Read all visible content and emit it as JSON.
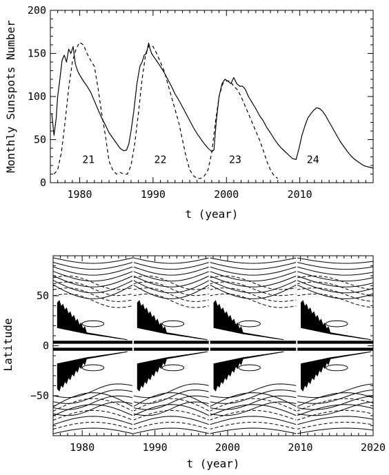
{
  "chart_data": [
    {
      "type": "line",
      "xlabel": "t (year)",
      "ylabel": "Monthly Sunspots Number",
      "xlim": [
        1976,
        2020
      ],
      "ylim": [
        0,
        200
      ],
      "xticks": [
        1980,
        1990,
        2000,
        2010
      ],
      "yticks": [
        0,
        50,
        100,
        150,
        200
      ],
      "grid": false,
      "annotations": [
        {
          "text": "21",
          "x": 1981.2,
          "y": 27
        },
        {
          "text": "22",
          "x": 1991.0,
          "y": 27
        },
        {
          "text": "23",
          "x": 2001.2,
          "y": 27
        },
        {
          "text": "24",
          "x": 2011.8,
          "y": 27
        }
      ],
      "series": [
        {
          "style": "solid",
          "x": [
            1976.2,
            1976.5,
            1976.8,
            1977.0,
            1977.3,
            1977.6,
            1977.9,
            1978.2,
            1978.5,
            1978.8,
            1979.1,
            1979.4,
            1979.7,
            1980.0,
            1980.5,
            1981.0,
            1981.5,
            1982.0,
            1982.5,
            1983.0,
            1983.5,
            1984.0,
            1984.5,
            1985.0,
            1985.5,
            1986.0,
            1986.4,
            1986.7,
            1987.0,
            1987.4,
            1987.8,
            1988.2,
            1988.5,
            1988.8,
            1989.1,
            1989.4,
            1989.6,
            1989.8,
            1990.2,
            1990.6,
            1991.0,
            1991.5,
            1992.0,
            1992.5,
            1993.0,
            1993.5,
            1994.0,
            1994.5,
            1995.0,
            1995.5,
            1996.0,
            1996.5,
            1997.0,
            1997.5,
            1998.0,
            1998.3,
            1998.6,
            1999.0,
            1999.4,
            1999.8,
            2000.2,
            2000.6,
            2001.0,
            2001.4,
            2001.8,
            2002.2,
            2002.6,
            2003.0,
            2003.5,
            2004.0,
            2004.5,
            2005.0,
            2005.5,
            2006.0,
            2006.5,
            2007.0,
            2007.5,
            2008.0,
            2008.5,
            2009.0,
            2009.5,
            2009.9,
            2010.3,
            2010.7,
            2011.1,
            2011.5,
            2011.9,
            2012.3,
            2012.7,
            2013.1,
            2013.5,
            2013.9,
            2014.3,
            2014.7,
            2015.1,
            2015.5,
            2016.0,
            2016.5,
            2017.0,
            2017.5,
            2018.0,
            2018.5,
            2019.0,
            2019.5,
            2020.0
          ],
          "y": [
            80,
            55,
            75,
            100,
            120,
            142,
            148,
            140,
            155,
            150,
            158,
            138,
            130,
            125,
            118,
            112,
            105,
            95,
            85,
            75,
            67,
            58,
            52,
            46,
            40,
            37,
            38,
            45,
            60,
            85,
            115,
            135,
            140,
            148,
            150,
            162,
            155,
            150,
            145,
            140,
            135,
            128,
            120,
            112,
            103,
            96,
            88,
            80,
            72,
            64,
            57,
            51,
            45,
            40,
            36,
            38,
            70,
            100,
            115,
            120,
            118,
            115,
            122,
            115,
            112,
            112,
            108,
            100,
            93,
            86,
            78,
            72,
            64,
            58,
            51,
            45,
            40,
            36,
            32,
            28,
            27,
            40,
            55,
            66,
            75,
            80,
            84,
            87,
            86,
            83,
            78,
            72,
            66,
            60,
            54,
            48,
            42,
            36,
            31,
            27,
            24,
            21,
            19,
            18,
            17
          ]
        },
        {
          "style": "dashed",
          "x": [
            1976.5,
            1977.0,
            1977.5,
            1978.0,
            1978.5,
            1979.0,
            1979.5,
            1980.0,
            1980.5,
            1981.0,
            1981.5,
            1982.0,
            1982.5,
            1983.0,
            1983.5,
            1984.0,
            1984.5,
            1985.0,
            1985.5,
            1986.0,
            1986.5,
            1987.0,
            1987.5,
            1988.0,
            1988.5,
            1989.0,
            1989.5,
            1990.0,
            1990.5,
            1991.0,
            1991.5,
            1992.0,
            1992.5,
            1993.0,
            1993.5,
            1994.0,
            1994.5,
            1995.0,
            1995.5,
            1996.0,
            1996.5,
            1997.0,
            1997.5,
            1998.0,
            1998.5,
            1999.0,
            1999.5,
            2000.0,
            2000.5,
            2001.0,
            2001.5,
            2002.0,
            2002.5,
            2003.0,
            2003.5,
            2004.0,
            2004.5,
            2005.0,
            2005.5,
            2006.0,
            2006.5,
            2007.0
          ],
          "y": [
            10,
            15,
            35,
            70,
            110,
            140,
            155,
            163,
            160,
            150,
            142,
            135,
            110,
            80,
            55,
            25,
            15,
            10,
            12,
            10,
            10,
            20,
            45,
            80,
            120,
            150,
            160,
            158,
            150,
            140,
            130,
            115,
            100,
            85,
            70,
            50,
            30,
            15,
            8,
            5,
            5,
            8,
            15,
            35,
            70,
            100,
            115,
            118,
            118,
            112,
            108,
            100,
            90,
            80,
            70,
            60,
            50,
            38,
            25,
            15,
            8,
            5
          ]
        }
      ]
    },
    {
      "type": "contour",
      "xlabel": "t (year)",
      "ylabel": "Latitude",
      "xlim": [
        1976,
        2020
      ],
      "ylim": [
        -90,
        90
      ],
      "xticks": [
        1980,
        1990,
        2000,
        2010,
        2020
      ],
      "yticks": [
        -50,
        0,
        50
      ],
      "grid": false,
      "cycle_starts": [
        1976,
        1987,
        1997.5,
        2009.5
      ],
      "note": "filled black butterfly wings with solid (positive) and dashed (negative) contour lines"
    }
  ]
}
